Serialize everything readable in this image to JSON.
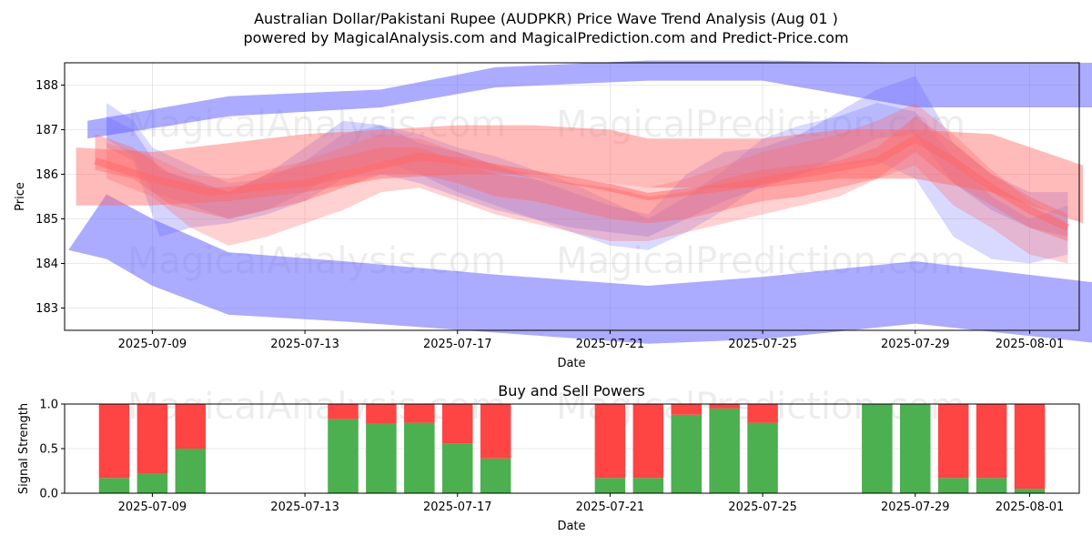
{
  "title_line1": "Australian Dollar/Pakistani Rupee (AUDPKR) Price Wave Trend Analysis (Aug 01 )",
  "title_line2": "powered by MagicalAnalysis.com and MagicalPrediction.com and Predict-Price.com",
  "watermarks": [
    "MagicalAnalysis.com",
    "MagicalPrediction.com"
  ],
  "colors": {
    "blue_band": "#6666ff",
    "red_band": "#ff6666",
    "buy": "#4caf50",
    "sell": "#ff4444",
    "grid": "#b0b0b0"
  },
  "chart_data": [
    {
      "type": "area",
      "id": "price-wave",
      "xlabel": "Date",
      "ylabel": "Price",
      "x_range": [
        "2025-07-06.7",
        "2025-08-02.3"
      ],
      "ylim": [
        182.5,
        188.5
      ],
      "y_ticks": [
        183,
        184,
        185,
        186,
        187,
        188
      ],
      "x_ticks": [
        {
          "date": "2025-07-09",
          "label": "2025-07-09"
        },
        {
          "date": "2025-07-13",
          "label": "2025-07-13"
        },
        {
          "date": "2025-07-17",
          "label": "2025-07-17"
        },
        {
          "date": "2025-07-21",
          "label": "2025-07-21"
        },
        {
          "date": "2025-07-25",
          "label": "2025-07-25"
        },
        {
          "date": "2025-07-29",
          "label": "2025-07-29"
        },
        {
          "date": "2025-08-01",
          "label": "2025-08-01"
        }
      ],
      "series": [
        {
          "name": "blue-upper-envelope",
          "color": "blue",
          "opacity": 0.55,
          "x": [
            7.3,
            11,
            15,
            18,
            22,
            25,
            29,
            33.9
          ],
          "upper": [
            187.2,
            187.75,
            187.9,
            188.4,
            188.55,
            188.55,
            188.5,
            188.5
          ],
          "lower": [
            186.8,
            187.3,
            187.5,
            187.95,
            188.1,
            188.1,
            187.5,
            187.5
          ]
        },
        {
          "name": "blue-lower-envelope",
          "color": "blue",
          "opacity": 0.55,
          "x": [
            6.8,
            7.8,
            9,
            11,
            14,
            18,
            22,
            25,
            29,
            33.9
          ],
          "upper": [
            184.3,
            185.55,
            185,
            184.25,
            184.05,
            183.75,
            183.5,
            183.7,
            184.05,
            183.55
          ],
          "lower": [
            184.3,
            184.1,
            183.5,
            182.85,
            182.7,
            182.45,
            182.2,
            182.3,
            182.65,
            182.2
          ]
        },
        {
          "name": "blue-wave-1",
          "color": "blue",
          "opacity": 0.25,
          "x": [
            7.8,
            8.5,
            9,
            10,
            11,
            12,
            13,
            14,
            15,
            16,
            17,
            18,
            19,
            20,
            21,
            22,
            23,
            24,
            25,
            26,
            27,
            28,
            29,
            30,
            31,
            32,
            33
          ],
          "upper": [
            187.6,
            187.2,
            186.6,
            186.2,
            185.8,
            185.9,
            186.3,
            186.9,
            187.1,
            186.9,
            186.6,
            186.4,
            186.1,
            185.8,
            185.4,
            185.0,
            185.5,
            186.1,
            186.8,
            187.1,
            187.3,
            187.6,
            187.4,
            186.4,
            185.5,
            185.0,
            185.3
          ],
          "lower": [
            186.8,
            186.4,
            185.6,
            185.3,
            185.0,
            185.2,
            185.6,
            186.1,
            186.3,
            186.0,
            185.6,
            185.3,
            185.0,
            184.7,
            184.4,
            184.3,
            184.7,
            185.2,
            185.8,
            186.0,
            186.2,
            186.3,
            185.9,
            184.6,
            184.1,
            184.0,
            184.2
          ]
        },
        {
          "name": "blue-wave-2",
          "color": "blue",
          "opacity": 0.28,
          "x": [
            7.8,
            8.5,
            9.2,
            10,
            11,
            12,
            13,
            14,
            15,
            16,
            17,
            18,
            19,
            20,
            21,
            22,
            23,
            24,
            25,
            26,
            27,
            28,
            29,
            30,
            31,
            32,
            33
          ],
          "upper": [
            187.3,
            187.0,
            186.1,
            185.9,
            185.6,
            186.0,
            186.6,
            187.2,
            187.1,
            186.7,
            186.5,
            186.2,
            185.9,
            185.6,
            185.3,
            185.1,
            186.0,
            186.5,
            186.6,
            186.9,
            187.4,
            187.9,
            188.2,
            186.7,
            186.0,
            185.6,
            185.6
          ],
          "lower": [
            186.6,
            186.3,
            184.6,
            184.8,
            184.9,
            185.1,
            185.4,
            185.9,
            186.0,
            185.8,
            185.5,
            185.2,
            185.0,
            184.8,
            184.7,
            184.6,
            185.0,
            185.4,
            185.7,
            186.0,
            186.4,
            186.8,
            186.9,
            185.8,
            185.2,
            184.8,
            184.6
          ]
        },
        {
          "name": "red-wave-1",
          "color": "red",
          "opacity": 0.45,
          "x": [
            7,
            9,
            11,
            13,
            15,
            17,
            19,
            21,
            22,
            25,
            27,
            29,
            31,
            33.4
          ],
          "upper": [
            186.6,
            186.5,
            186.7,
            186.9,
            187.0,
            187.1,
            187.1,
            187.0,
            186.8,
            186.8,
            187.0,
            187.0,
            186.9,
            186.2
          ],
          "lower": [
            185.3,
            185.3,
            185.4,
            185.6,
            185.9,
            186.0,
            186.0,
            185.8,
            185.7,
            185.7,
            185.9,
            185.9,
            185.6,
            184.9
          ]
        },
        {
          "name": "red-wave-2",
          "color": "red",
          "opacity": 0.4,
          "x": [
            7.5,
            8.5,
            9.5,
            11,
            12,
            13,
            14,
            15,
            16,
            17,
            18,
            19,
            20,
            21,
            22,
            23,
            24,
            25,
            26,
            27,
            28,
            29,
            30,
            31,
            32,
            33
          ],
          "upper": [
            186.9,
            186.6,
            186.0,
            185.6,
            186.0,
            186.2,
            186.4,
            186.6,
            186.6,
            186.3,
            186.0,
            185.9,
            185.8,
            185.7,
            185.5,
            185.6,
            185.9,
            186.1,
            186.2,
            186.3,
            186.6,
            187.3,
            186.7,
            186.0,
            185.5,
            185.1
          ],
          "lower": [
            186.1,
            185.9,
            185.3,
            185.0,
            185.2,
            185.4,
            185.7,
            186.0,
            186.0,
            185.8,
            185.5,
            185.4,
            185.2,
            185.0,
            184.9,
            185.0,
            185.2,
            185.4,
            185.5,
            185.7,
            185.9,
            186.5,
            185.8,
            185.3,
            184.8,
            184.5
          ]
        },
        {
          "name": "red-wave-3",
          "color": "red",
          "opacity": 0.3,
          "x": [
            7.8,
            9,
            10,
            11,
            12,
            13,
            14,
            15,
            16,
            17,
            18,
            19,
            20,
            21,
            22,
            23,
            24,
            25,
            26,
            27,
            28,
            29,
            30,
            31,
            32,
            33
          ],
          "upper": [
            186.7,
            186.4,
            186.0,
            185.9,
            186.1,
            186.3,
            186.6,
            186.9,
            186.8,
            186.5,
            186.2,
            186.0,
            185.9,
            185.8,
            185.7,
            185.9,
            186.2,
            186.5,
            186.7,
            186.9,
            187.2,
            187.6,
            186.9,
            186.1,
            185.4,
            184.9
          ],
          "lower": [
            185.9,
            185.5,
            184.8,
            184.4,
            184.6,
            184.9,
            185.2,
            185.6,
            185.7,
            185.4,
            185.1,
            184.9,
            184.7,
            184.5,
            184.5,
            184.7,
            184.9,
            185.1,
            185.3,
            185.5,
            185.9,
            186.2,
            185.3,
            184.8,
            184.2,
            184.0
          ]
        }
      ],
      "core_line": {
        "x": [
          7.5,
          9,
          10.5,
          13,
          15,
          16,
          17,
          19,
          21,
          22,
          24,
          26,
          28,
          29,
          30,
          31,
          32,
          33
        ],
        "y": [
          186.3,
          185.9,
          185.6,
          185.8,
          186.2,
          186.4,
          186.3,
          186.0,
          185.7,
          185.5,
          185.7,
          186.0,
          186.3,
          186.8,
          186.3,
          185.7,
          185.2,
          184.8
        ]
      }
    },
    {
      "type": "bar",
      "id": "buy-sell-powers",
      "title": "Buy and Sell Powers",
      "xlabel": "Date",
      "ylabel": "Signal Strength",
      "ylim": [
        0,
        1.0
      ],
      "y_ticks": [
        0.0,
        0.5,
        1.0
      ],
      "y_tick_labels": [
        "0.0",
        "0.5",
        "1.0"
      ],
      "x_ticks": [
        "2025-07-09",
        "2025-07-13",
        "2025-07-17",
        "2025-07-21",
        "2025-07-25",
        "2025-07-29",
        "2025-08-01"
      ],
      "dates": [
        "2025-07-08",
        "2025-07-09",
        "2025-07-10",
        "2025-07-14",
        "2025-07-15",
        "2025-07-16",
        "2025-07-17",
        "2025-07-18",
        "2025-07-21",
        "2025-07-22",
        "2025-07-23",
        "2025-07-24",
        "2025-07-25",
        "2025-07-28",
        "2025-07-29",
        "2025-07-30",
        "2025-07-31",
        "2025-08-01"
      ],
      "series": [
        {
          "name": "Buy",
          "values": [
            0.17,
            0.22,
            0.5,
            0.83,
            0.78,
            0.79,
            0.56,
            0.39,
            0.17,
            0.17,
            0.88,
            0.95,
            0.79,
            1.0,
            1.0,
            0.17,
            0.17,
            0.05
          ]
        },
        {
          "name": "Sell",
          "values": [
            0.83,
            0.78,
            0.5,
            0.17,
            0.22,
            0.21,
            0.44,
            0.61,
            0.83,
            0.83,
            0.12,
            0.05,
            0.21,
            0.0,
            0.0,
            0.83,
            0.83,
            0.95
          ]
        }
      ]
    }
  ]
}
